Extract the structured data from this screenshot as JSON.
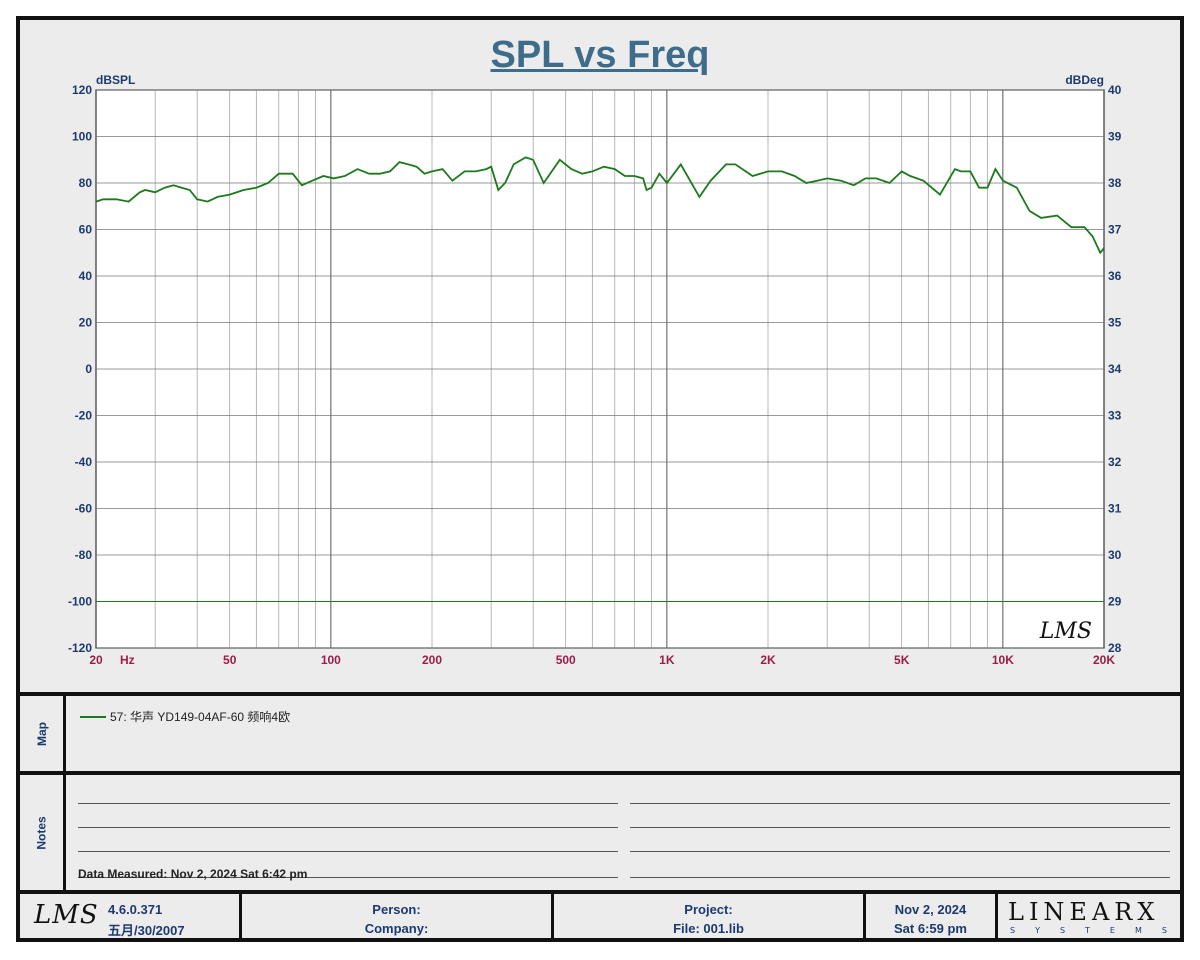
{
  "title": "SPL vs Freq",
  "chart_data": {
    "type": "line",
    "title": "SPL vs Freq",
    "ylabel_left": "dBSPL",
    "ylabel_right": "dBDeg",
    "x_scale": "log",
    "xlim": [
      20,
      20000
    ],
    "ylim_left": [
      -120,
      120
    ],
    "ylim_right": [
      28,
      40
    ],
    "x_tick_labels": [
      {
        "v": 20,
        "t": "20"
      },
      {
        "v": 30,
        "t": "Hz"
      },
      {
        "v": 50,
        "t": "50"
      },
      {
        "v": 100,
        "t": "100"
      },
      {
        "v": 200,
        "t": "200"
      },
      {
        "v": 500,
        "t": "500"
      },
      {
        "v": 1000,
        "t": "1K"
      },
      {
        "v": 2000,
        "t": "2K"
      },
      {
        "v": 5000,
        "t": "5K"
      },
      {
        "v": 10000,
        "t": "10K"
      },
      {
        "v": 20000,
        "t": "20K"
      }
    ],
    "y_ticks_left": [
      120,
      100,
      80,
      60,
      40,
      20,
      0,
      -20,
      -40,
      -60,
      -80,
      -100,
      -120
    ],
    "y_ticks_right": [
      40,
      39,
      38,
      37,
      36,
      35,
      34,
      33,
      32,
      31,
      30,
      29,
      28
    ],
    "grid": true,
    "series": [
      {
        "name": "57: 华声 YD149-04AF-60 频响4欧",
        "color": "#1c7a1c",
        "axis": "left",
        "x": [
          20,
          21,
          23,
          25,
          27,
          28,
          30,
          32,
          34,
          36,
          38,
          40,
          43,
          46,
          50,
          55,
          60,
          65,
          70,
          73,
          77,
          82,
          88,
          95,
          102,
          110,
          120,
          130,
          140,
          150,
          160,
          170,
          180,
          190,
          200,
          215,
          230,
          250,
          270,
          290,
          300,
          315,
          330,
          350,
          380,
          400,
          430,
          480,
          520,
          560,
          600,
          650,
          700,
          750,
          800,
          850,
          870,
          900,
          950,
          1000,
          1100,
          1250,
          1350,
          1500,
          1600,
          1800,
          2000,
          2200,
          2400,
          2600,
          2800,
          3000,
          3300,
          3600,
          3900,
          4200,
          4600,
          5000,
          5300,
          5800,
          6500,
          7200,
          7500,
          8000,
          8500,
          9000,
          9500,
          10000,
          11000,
          12000,
          13000,
          14500,
          16000,
          17500,
          18500,
          19500,
          20000
        ],
        "y": [
          72,
          73,
          73,
          72,
          76,
          77,
          76,
          78,
          79,
          78,
          77,
          73,
          72,
          74,
          75,
          77,
          78,
          80,
          84,
          84,
          84,
          79,
          81,
          83,
          82,
          83,
          86,
          84,
          84,
          85,
          89,
          88,
          87,
          84,
          85,
          86,
          81,
          85,
          85,
          86,
          87,
          77,
          80,
          88,
          91,
          90,
          80,
          90,
          86,
          84,
          85,
          87,
          86,
          83,
          83,
          82,
          77,
          78,
          84,
          80,
          88,
          74,
          81,
          88,
          88,
          83,
          85,
          85,
          83,
          80,
          81,
          82,
          81,
          79,
          82,
          82,
          80,
          85,
          83,
          81,
          75,
          86,
          85,
          85,
          78,
          78,
          86,
          81,
          78,
          68,
          65,
          66,
          61,
          61,
          57,
          50,
          52
        ]
      },
      {
        "name": "",
        "color": "#1c7a1c",
        "axis": "left",
        "x": [
          20,
          20000
        ],
        "y": [
          -100,
          -100
        ]
      }
    ],
    "watermark": "LMS"
  },
  "map": {
    "label": "Map",
    "entry": "57: 华声 YD149-04AF-60 频响4欧"
  },
  "notes": {
    "label": "Notes",
    "measured": "Data Measured: Nov  2, 2024  Sat  6:42 pm"
  },
  "footer": {
    "logo": "LMS",
    "version": "4.6.0.371",
    "version_date": "五月/30/2007",
    "person": "Person:",
    "company": "Company:",
    "project": "Project:",
    "file": "File: 001.lib",
    "date": "Nov  2, 2024",
    "time": "Sat  6:59 pm",
    "brand": "LINEARX",
    "brand_sub": "SYSTEMS"
  },
  "colors": {
    "curve": "#1c7a1c",
    "axis_text": "#1d3a70",
    "x_tick_text": "#9a1d4a",
    "title": "#3d6d8a"
  }
}
